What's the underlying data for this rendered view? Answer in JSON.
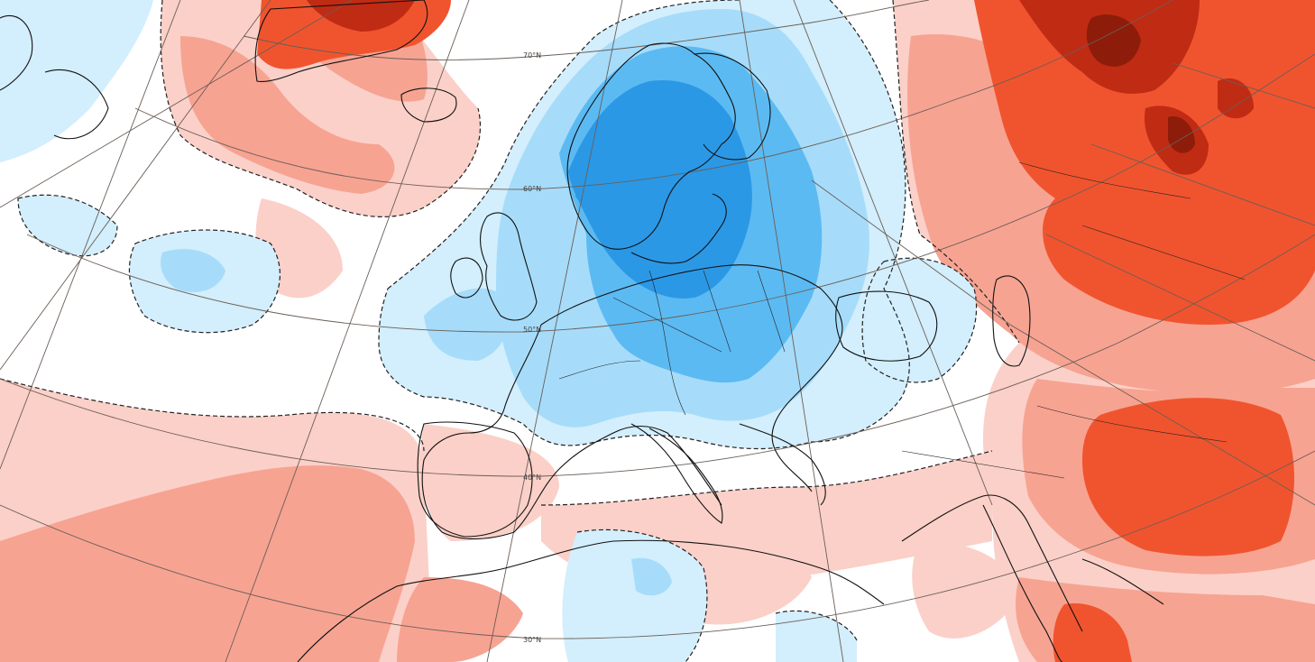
{
  "map": {
    "projection": "polar-stereographic",
    "region": "Europe, North Atlantic, North Africa, Middle East",
    "graticule_labels": [
      "70°N",
      "60°N",
      "50°N",
      "40°N",
      "30°N"
    ],
    "colors": {
      "background": "#ffffff",
      "cold_1": "#d3eefc",
      "cold_2": "#a6dcfa",
      "cold_3": "#5cbaf2",
      "cold_4": "#2b98e6",
      "warm_1": "#fbd0c8",
      "warm_2": "#f7a392",
      "warm_3": "#f0542e",
      "warm_4": "#c02b14",
      "warm_5": "#8e1c0b",
      "coast": "#111111",
      "graticule": "#6a5e56",
      "contour": "#222222"
    }
  }
}
